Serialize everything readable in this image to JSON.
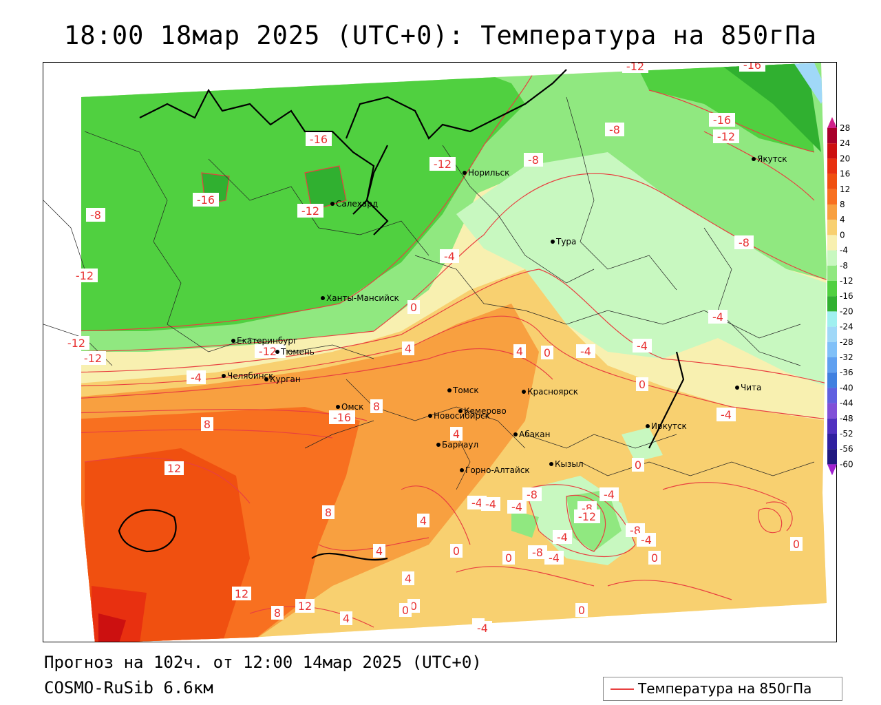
{
  "header": {
    "title": "18:00 18мар 2025 (UTC+0): Температура на 850гПа"
  },
  "footer": {
    "forecast": "Прогноз на 102ч. от 12:00 14мар 2025 (UTC+0)",
    "model": "COSMO-RuSib 6.6км"
  },
  "legend": {
    "label": "Температура на 850гПа",
    "line_color": "#e84040"
  },
  "scale": {
    "labels": [
      "28",
      "24",
      "20",
      "16",
      "12",
      "8",
      "4",
      "0",
      "-4",
      "-8",
      "-12",
      "-16",
      "-20",
      "-24",
      "-28",
      "-32",
      "-36",
      "-40",
      "-44",
      "-48",
      "-52",
      "-56",
      "-60"
    ],
    "colors": [
      "#a8002a",
      "#cc1010",
      "#e83010",
      "#f05010",
      "#f87020",
      "#f8a040",
      "#f8d070",
      "#f8f0b0",
      "#c8f8c0",
      "#90e880",
      "#50d040",
      "#30b030",
      "#a0f0f0",
      "#a0d8f8",
      "#80c0f8",
      "#60a0f0",
      "#4080e0",
      "#6060e0",
      "#8050d8",
      "#5030c0",
      "#3020a0",
      "#201880"
    ],
    "top_arrow_color": "#d0208a",
    "bottom_arrow_color": "#a020d0"
  },
  "cities": [
    {
      "name": "Норильск"
    },
    {
      "name": "Якутск"
    },
    {
      "name": "Салехард"
    },
    {
      "name": "Тура"
    },
    {
      "name": "Ханты-Мансийск"
    },
    {
      "name": "Екатеринбург"
    },
    {
      "name": "Тюмень"
    },
    {
      "name": "Челябинск"
    },
    {
      "name": "Курган"
    },
    {
      "name": "Томск"
    },
    {
      "name": "Красноярск"
    },
    {
      "name": "Омск"
    },
    {
      "name": "Новосибирск"
    },
    {
      "name": "Кемерово"
    },
    {
      "name": "Абакан"
    },
    {
      "name": "Барнаул"
    },
    {
      "name": "Иркутск"
    },
    {
      "name": "Чита"
    },
    {
      "name": "Кызыл"
    },
    {
      "name": "Горно-Алтайск"
    }
  ],
  "isotherm_labels": [
    "-12",
    "-16",
    "-16",
    "-12",
    "-12",
    "-8",
    "-16",
    "-16",
    "-12",
    "-8",
    "-12",
    "-12",
    "-8",
    "-8",
    "-4",
    "-4",
    "0",
    "-16",
    "-12",
    "-4",
    "-8",
    "-12",
    "4",
    "4",
    "0",
    "-4",
    "-4",
    "0",
    "-4",
    "8",
    "8",
    "12",
    "4",
    "4",
    "-4",
    "-8",
    "-4",
    "-4",
    "-8",
    "-8",
    "-12",
    "-4",
    "-8",
    "-4",
    "-4",
    "-4",
    "0",
    "0",
    "0",
    "0",
    "4",
    "8",
    "4",
    "0",
    "12",
    "8",
    "12",
    "4",
    "0",
    "-4",
    "0",
    "0",
    "0"
  ]
}
